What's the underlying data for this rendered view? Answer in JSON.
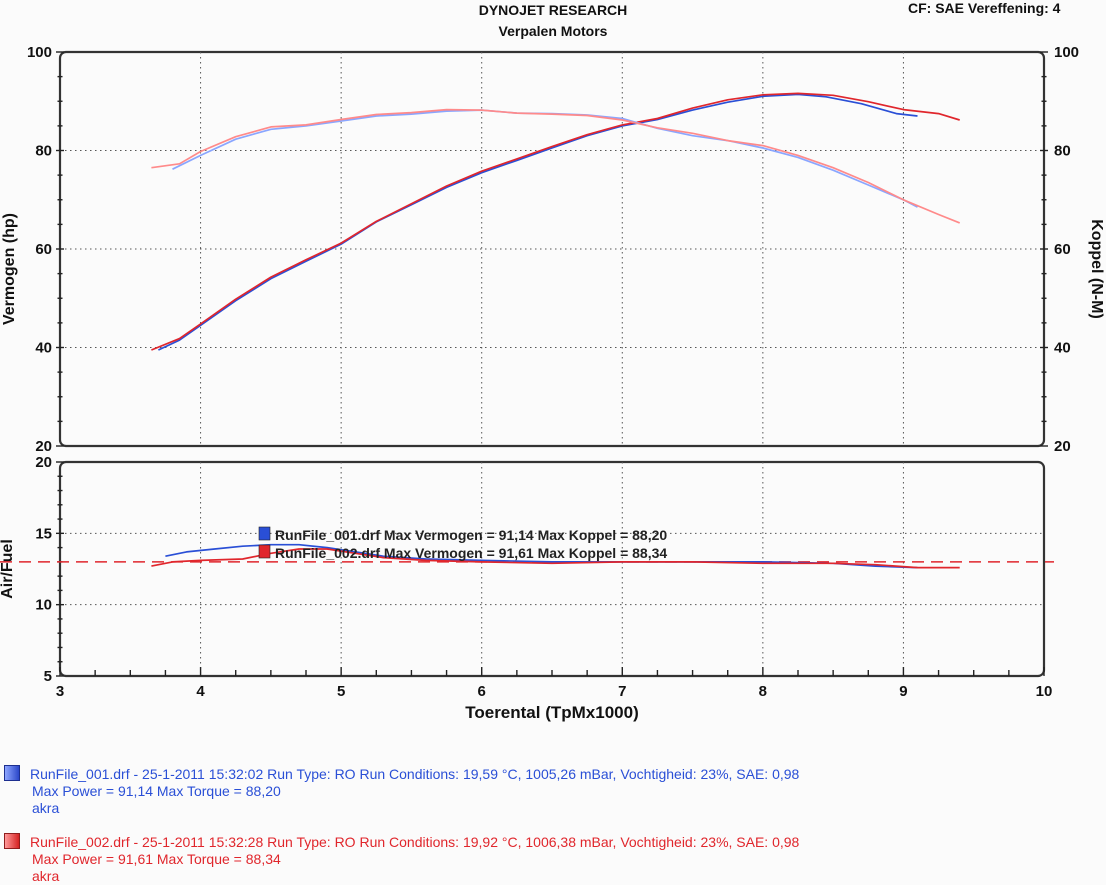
{
  "header": {
    "title": "DYNOJET RESEARCH",
    "subtitle": "Verpalen Motors",
    "cf": "CF: SAE  Vereffening: 4"
  },
  "chart_data": [
    {
      "type": "line",
      "panel": "power-torque",
      "xlabel": "Toerental (TpMx1000)",
      "ylabel": "Vermogen (hp)",
      "y2label": "Koppel (N-M)",
      "xlim": [
        3,
        10
      ],
      "ylim": [
        20,
        100
      ],
      "y2lim": [
        20,
        100
      ],
      "xticks": [
        3,
        4,
        5,
        6,
        7,
        8,
        9,
        10
      ],
      "yticks": [
        20,
        40,
        60,
        80,
        100
      ],
      "y2ticks": [
        20,
        40,
        60,
        80,
        100
      ],
      "grid": true,
      "series": [
        {
          "metric": "power",
          "run": 1,
          "color": "#2a4fd6",
          "x": [
            3.7,
            3.85,
            4.0,
            4.25,
            4.5,
            4.75,
            5.0,
            5.25,
            5.5,
            5.75,
            6.0,
            6.25,
            6.5,
            6.75,
            7.0,
            7.25,
            7.5,
            7.75,
            8.0,
            8.25,
            8.45,
            8.7,
            8.95,
            9.1
          ],
          "y": [
            39.5,
            41.5,
            44.5,
            49.5,
            54,
            57.5,
            61,
            65.5,
            69,
            72.5,
            75.5,
            78,
            80.5,
            83,
            85,
            86.3,
            88.2,
            89.8,
            91,
            91.4,
            90.9,
            89.5,
            87.5,
            87
          ]
        },
        {
          "metric": "power",
          "run": 2,
          "color": "#e0262c",
          "x": [
            3.65,
            3.85,
            4.0,
            4.25,
            4.5,
            4.75,
            5.0,
            5.25,
            5.5,
            5.75,
            6.0,
            6.25,
            6.5,
            6.75,
            7.0,
            7.25,
            7.5,
            7.75,
            8.0,
            8.25,
            8.5,
            8.75,
            9.0,
            9.25,
            9.4
          ],
          "y": [
            39.5,
            41.8,
            44.8,
            49.8,
            54.3,
            57.8,
            61.2,
            65.6,
            69.2,
            72.8,
            75.8,
            78.3,
            80.8,
            83.2,
            85.2,
            86.5,
            88.6,
            90.3,
            91.3,
            91.6,
            91.2,
            89.9,
            88.3,
            87.5,
            86.2
          ]
        },
        {
          "metric": "torque",
          "run": 1,
          "color": "#8aa6ff",
          "x": [
            3.8,
            4.0,
            4.25,
            4.5,
            4.75,
            5.0,
            5.25,
            5.5,
            5.75,
            6.0,
            6.25,
            6.5,
            6.75,
            7.0,
            7.25,
            7.5,
            7.75,
            8.0,
            8.25,
            8.5,
            8.75,
            9.0,
            9.1
          ],
          "y": [
            76.2,
            79,
            82.3,
            84.3,
            85,
            86,
            87,
            87.4,
            88,
            88.2,
            87.6,
            87.5,
            87.2,
            86.5,
            84.5,
            83,
            82,
            80.5,
            78.6,
            76,
            73,
            70,
            68.5
          ]
        },
        {
          "metric": "torque",
          "run": 2,
          "color": "#ff8a8a",
          "x": [
            3.65,
            3.85,
            4.0,
            4.25,
            4.5,
            4.75,
            5.0,
            5.25,
            5.5,
            5.75,
            6.0,
            6.25,
            6.5,
            6.75,
            7.0,
            7.25,
            7.5,
            7.75,
            8.0,
            8.25,
            8.5,
            8.75,
            9.0,
            9.25,
            9.4
          ],
          "y": [
            76.5,
            77.3,
            79.8,
            82.8,
            84.8,
            85.2,
            86.3,
            87.3,
            87.7,
            88.3,
            88.2,
            87.6,
            87.4,
            87.1,
            86.2,
            84.6,
            83.5,
            82,
            81,
            79,
            76.5,
            73.5,
            70,
            67,
            65.3
          ]
        }
      ]
    },
    {
      "type": "line",
      "panel": "air-fuel",
      "xlabel": "Toerental (TpMx1000)",
      "ylabel": "Air/Fuel",
      "xlim": [
        3,
        10
      ],
      "ylim": [
        5,
        20
      ],
      "xticks": [
        3,
        4,
        5,
        6,
        7,
        8,
        9,
        10
      ],
      "yticks": [
        5,
        10,
        15,
        20
      ],
      "grid": true,
      "reference_line": {
        "y": 13,
        "color": "#e0262c",
        "style": "dashed"
      },
      "series": [
        {
          "run": 1,
          "color": "#2a4fd6",
          "x": [
            3.75,
            3.9,
            4.1,
            4.3,
            4.5,
            4.7,
            4.9,
            5.1,
            5.3,
            5.6,
            6.0,
            6.5,
            7.0,
            7.5,
            8.0,
            8.5,
            8.8,
            9.1
          ],
          "y": [
            13.4,
            13.7,
            13.9,
            14.1,
            14.2,
            14.2,
            14.0,
            13.7,
            13.4,
            13.2,
            13.1,
            13.0,
            13.0,
            13.0,
            13.0,
            12.9,
            12.7,
            12.6
          ]
        },
        {
          "run": 2,
          "color": "#e0262c",
          "x": [
            3.65,
            3.8,
            4.0,
            4.3,
            4.5,
            4.7,
            4.9,
            5.1,
            5.3,
            5.6,
            6.0,
            6.5,
            7.0,
            7.5,
            8.0,
            8.5,
            8.8,
            9.1,
            9.4
          ],
          "y": [
            12.7,
            13.0,
            13.1,
            13.2,
            13.6,
            13.9,
            13.9,
            13.6,
            13.3,
            13.1,
            13.0,
            12.9,
            13.0,
            13.0,
            12.9,
            12.9,
            12.8,
            12.6,
            12.6
          ]
        }
      ]
    }
  ],
  "annotations": [
    {
      "text": "RunFile_001.drf Max Vermogen = 91,14     Max Koppel = 88,20",
      "color": "#2a4fd6"
    },
    {
      "text": "RunFile_002.drf Max Vermogen = 91,61     Max Koppel = 88,34",
      "color": "#e0262c"
    }
  ],
  "legend": [
    {
      "line1": "RunFile_001.drf - 25-1-2011 15:32:02  Run Type: RO  Run Conditions: 19,59 °C, 1005,26 mBar,  Vochtigheid: 23%, SAE: 0,98",
      "line2": "Max Power = 91,14  Max Torque = 88,20",
      "line3": "akra",
      "color": "#2a4fd6"
    },
    {
      "line1": "RunFile_002.drf - 25-1-2011 15:32:28  Run Type: RO  Run Conditions: 19,92 °C, 1006,38 mBar,  Vochtigheid: 23%, SAE: 0,98",
      "line2": "Max Power = 91,61  Max Torque = 88,34",
      "line3": "akra",
      "color": "#e0262c"
    }
  ]
}
